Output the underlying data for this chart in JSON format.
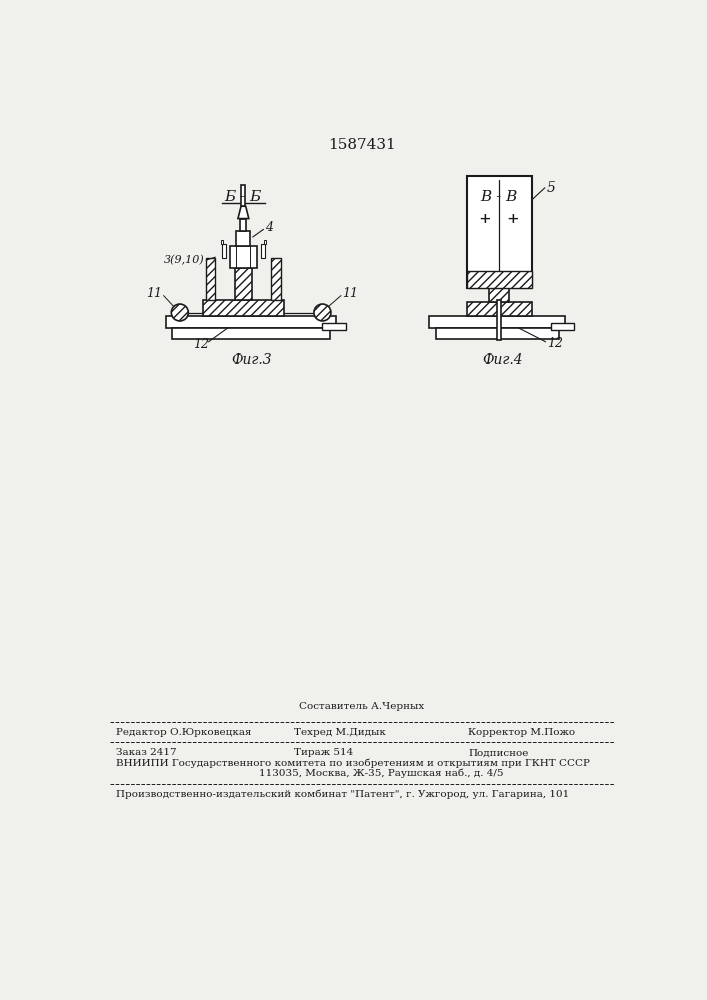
{
  "patent_number": "1587431",
  "bg_color": "#f0f0ec",
  "line_color": "#1a1a1a",
  "fig3_label": "Фиг.3",
  "fig4_label": "Фиг.4",
  "section_bb": "Б - Б",
  "section_vv": "В - В",
  "footer_line1_left": "Редактор О.Юрковецкая",
  "footer_line1_center": "Техред М.Дидык",
  "footer_line1_center_top": "Составитель А.Черных",
  "footer_line1_right": "Корректор М.Пожо",
  "footer_line2_left": "Заказ 2417",
  "footer_line2_center": "Тираж 514",
  "footer_line2_right": "Подписное",
  "footer_line3": "ВНИИПИ Государственного комитета по изобретениям и открытиям при ГКНТ СССР",
  "footer_line4": "113035, Москва, Ж-35, Раушская наб., д. 4/5",
  "footer_line5": "Производственно-издательский комбинат \"Патент\", г. Ужгород, ул. Гагарина, 101"
}
